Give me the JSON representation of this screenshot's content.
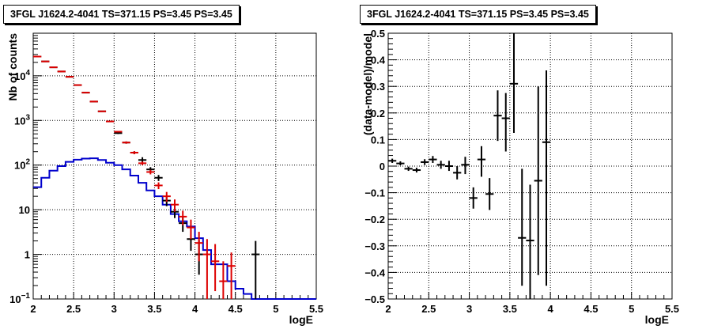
{
  "chart_data": [
    {
      "type": "line",
      "title": "3FGL J1624.2-4041 TS=371.15 PS=3.45 PS=3.45",
      "xlabel": "logE",
      "ylabel": "Nb of counts",
      "xlim": [
        2,
        5.5
      ],
      "ylim": [
        0.1,
        90000
      ],
      "y_scale": "log",
      "grid": true,
      "x_ticks": [
        "2",
        "2.5",
        "3",
        "3.5",
        "4",
        "4.5",
        "5",
        "5.5"
      ],
      "y_ticks": [
        {
          "value": 0.1,
          "label": "10⁻¹"
        },
        {
          "value": 1,
          "label": "1"
        },
        {
          "value": 10,
          "label": "10"
        },
        {
          "value": 100,
          "label": "10²"
        },
        {
          "value": 1000,
          "label": "10³"
        },
        {
          "value": 10000,
          "label": "10⁴"
        }
      ],
      "bin_edges": [
        2.0,
        2.1,
        2.2,
        2.3,
        2.4,
        2.5,
        2.6,
        2.7,
        2.8,
        2.9,
        3.0,
        3.1,
        3.2,
        3.3,
        3.4,
        3.5,
        3.6,
        3.7,
        3.8,
        3.9,
        4.0,
        4.1,
        4.2,
        4.3,
        4.4,
        4.5,
        4.6,
        4.7,
        4.8,
        4.9,
        5.0,
        5.1,
        5.2,
        5.3,
        5.4,
        5.5
      ],
      "series": [
        {
          "kind": "step",
          "color": "#0000cc",
          "values": [
            32,
            52,
            75,
            95,
            118,
            132,
            140,
            142,
            130,
            113,
            100,
            80,
            58,
            40,
            27,
            20,
            13,
            8,
            5.5,
            4.2,
            2.3,
            1.25,
            0.6,
            0.6,
            0.25,
            0.17,
            0.13,
            0.1,
            0.1,
            0.1,
            0.1,
            0.1,
            0.1,
            0.1,
            0.1
          ]
        },
        {
          "kind": "errorbars",
          "color": "#000000",
          "points": [
            {
              "x": 2.05,
              "y": 27000,
              "lo": 26700,
              "hi": 27300
            },
            {
              "x": 2.15,
              "y": 21000,
              "lo": 20700,
              "hi": 21300
            },
            {
              "x": 2.25,
              "y": 15500,
              "lo": 15300,
              "hi": 15700
            },
            {
              "x": 2.35,
              "y": 12500,
              "lo": 12300,
              "hi": 12700
            },
            {
              "x": 2.45,
              "y": 9500,
              "lo": 9350,
              "hi": 9650
            },
            {
              "x": 2.55,
              "y": 6200,
              "lo": 6100,
              "hi": 6300
            },
            {
              "x": 2.65,
              "y": 4200,
              "lo": 4130,
              "hi": 4270
            },
            {
              "x": 2.75,
              "y": 2650,
              "lo": 2600,
              "hi": 2700
            },
            {
              "x": 2.85,
              "y": 1600,
              "lo": 1560,
              "hi": 1640
            },
            {
              "x": 2.95,
              "y": 950,
              "lo": 920,
              "hi": 980
            },
            {
              "x": 3.05,
              "y": 520,
              "lo": 497,
              "hi": 543
            },
            {
              "x": 3.15,
              "y": 320,
              "lo": 302,
              "hi": 338
            },
            {
              "x": 3.25,
              "y": 190,
              "lo": 176,
              "hi": 204
            },
            {
              "x": 3.35,
              "y": 130,
              "lo": 105,
              "hi": 150
            },
            {
              "x": 3.45,
              "y": 80,
              "lo": 70,
              "hi": 90
            },
            {
              "x": 3.55,
              "y": 52,
              "lo": 44,
              "hi": 60
            },
            {
              "x": 3.65,
              "y": 16,
              "lo": 12,
              "hi": 20
            },
            {
              "x": 3.75,
              "y": 9,
              "lo": 6.5,
              "hi": 12
            },
            {
              "x": 3.85,
              "y": 5,
              "lo": 3.2,
              "hi": 7
            },
            {
              "x": 3.95,
              "y": 2.2,
              "lo": 1.2,
              "hi": 3.5
            },
            {
              "x": 4.05,
              "y": 1.0,
              "lo": 0.35,
              "hi": 2.1
            },
            {
              "x": 4.75,
              "y": 1.0,
              "lo": 0.1,
              "hi": 2.0
            }
          ]
        },
        {
          "kind": "errorbars",
          "color": "#dd0000",
          "points": [
            {
              "x": 2.05,
              "y": 27000,
              "lo": 26700,
              "hi": 27300
            },
            {
              "x": 2.15,
              "y": 21000,
              "lo": 20700,
              "hi": 21300
            },
            {
              "x": 2.25,
              "y": 15500,
              "lo": 15300,
              "hi": 15700
            },
            {
              "x": 2.35,
              "y": 12500,
              "lo": 12300,
              "hi": 12700
            },
            {
              "x": 2.45,
              "y": 9500,
              "lo": 9350,
              "hi": 9650
            },
            {
              "x": 2.55,
              "y": 6200,
              "lo": 6100,
              "hi": 6300
            },
            {
              "x": 2.65,
              "y": 4200,
              "lo": 4130,
              "hi": 4270
            },
            {
              "x": 2.75,
              "y": 2650,
              "lo": 2600,
              "hi": 2700
            },
            {
              "x": 2.85,
              "y": 1600,
              "lo": 1560,
              "hi": 1640
            },
            {
              "x": 2.95,
              "y": 950,
              "lo": 920,
              "hi": 980
            },
            {
              "x": 3.05,
              "y": 560,
              "lo": 537,
              "hi": 583
            },
            {
              "x": 3.15,
              "y": 320,
              "lo": 302,
              "hi": 338
            },
            {
              "x": 3.25,
              "y": 190,
              "lo": 176,
              "hi": 204
            },
            {
              "x": 3.35,
              "y": 110,
              "lo": 100,
              "hi": 120
            },
            {
              "x": 3.45,
              "y": 70,
              "lo": 62,
              "hi": 78
            },
            {
              "x": 3.55,
              "y": 35,
              "lo": 29,
              "hi": 41
            },
            {
              "x": 3.65,
              "y": 20,
              "lo": 15,
              "hi": 25
            },
            {
              "x": 3.75,
              "y": 13,
              "lo": 9,
              "hi": 17
            },
            {
              "x": 3.85,
              "y": 7,
              "lo": 4.5,
              "hi": 9.5
            },
            {
              "x": 3.95,
              "y": 4,
              "lo": 2.2,
              "hi": 6
            },
            {
              "x": 4.05,
              "y": 1.8,
              "lo": 0.7,
              "hi": 3.2
            },
            {
              "x": 4.15,
              "y": 1.0,
              "lo": 0.1,
              "hi": 2.2
            },
            {
              "x": 4.25,
              "y": 0.7,
              "lo": 0.15,
              "hi": 1.7
            },
            {
              "x": 4.35,
              "y": 0.25,
              "lo": 0.1,
              "hi": 0.7
            },
            {
              "x": 4.45,
              "y": 0.55,
              "lo": 0.1,
              "hi": 1.1
            }
          ]
        }
      ]
    },
    {
      "type": "scatter",
      "title": "3FGL J1624.2-4041 TS=371.15 PS=3.45 PS=3.45",
      "xlabel": "logE",
      "ylabel": "(data-model)/model",
      "xlim": [
        2,
        5.5
      ],
      "ylim": [
        -0.5,
        0.5
      ],
      "grid": true,
      "x_ticks": [
        "2",
        "2.5",
        "3",
        "3.5",
        "4",
        "4.5",
        "5",
        "5.5"
      ],
      "y_ticks": [
        "−0.5",
        "−0.4",
        "−0.3",
        "−0.2",
        "−0.1",
        "0",
        "0.1",
        "0.2",
        "0.3",
        "0.4",
        "0.5"
      ],
      "series": [
        {
          "kind": "errorbars",
          "color": "#000000",
          "points": [
            {
              "x": 2.05,
              "y": 0.02,
              "lo": 0.012,
              "hi": 0.028
            },
            {
              "x": 2.15,
              "y": 0.01,
              "lo": 0.003,
              "hi": 0.018
            },
            {
              "x": 2.25,
              "y": -0.01,
              "lo": -0.018,
              "hi": -0.002
            },
            {
              "x": 2.35,
              "y": -0.015,
              "lo": -0.024,
              "hi": -0.006
            },
            {
              "x": 2.45,
              "y": 0.015,
              "lo": 0.004,
              "hi": 0.026
            },
            {
              "x": 2.55,
              "y": 0.025,
              "lo": 0.012,
              "hi": 0.038
            },
            {
              "x": 2.65,
              "y": 0.005,
              "lo": -0.01,
              "hi": 0.02
            },
            {
              "x": 2.75,
              "y": 0.0,
              "lo": -0.018,
              "hi": 0.02
            },
            {
              "x": 2.85,
              "y": -0.025,
              "lo": -0.05,
              "hi": 0.0
            },
            {
              "x": 2.95,
              "y": 0.005,
              "lo": -0.03,
              "hi": 0.035
            },
            {
              "x": 3.05,
              "y": -0.12,
              "lo": -0.16,
              "hi": -0.08
            },
            {
              "x": 3.15,
              "y": 0.025,
              "lo": -0.04,
              "hi": 0.075
            },
            {
              "x": 3.25,
              "y": -0.105,
              "lo": -0.165,
              "hi": -0.045
            },
            {
              "x": 3.35,
              "y": 0.19,
              "lo": 0.095,
              "hi": 0.285
            },
            {
              "x": 3.45,
              "y": 0.18,
              "lo": 0.055,
              "hi": 0.275
            },
            {
              "x": 3.55,
              "y": 0.31,
              "lo": 0.125,
              "hi": 0.5
            },
            {
              "x": 3.65,
              "y": -0.27,
              "lo": -0.45,
              "hi": -0.01
            },
            {
              "x": 3.75,
              "y": -0.28,
              "lo": -0.5,
              "hi": -0.07
            },
            {
              "x": 3.85,
              "y": -0.055,
              "lo": -0.41,
              "hi": 0.3
            },
            {
              "x": 3.95,
              "y": 0.09,
              "lo": -0.45,
              "hi": 0.36
            }
          ]
        }
      ]
    }
  ]
}
